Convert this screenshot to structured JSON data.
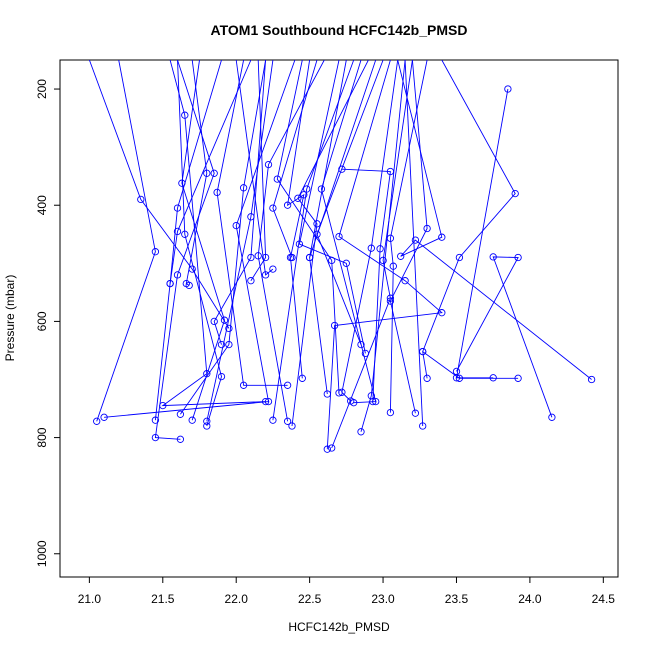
{
  "chart_data": {
    "type": "scatter",
    "title": "ATOM1 Southbound HCFC142b_PMSD",
    "xlabel": "HCFC142b_PMSD",
    "ylabel": "Pressure (mbar)",
    "xlim": [
      20.8,
      24.6
    ],
    "ylim": [
      1040,
      150
    ],
    "y_reversed": true,
    "xticks": [
      21.0,
      21.5,
      22.0,
      22.5,
      23.0,
      23.5,
      24.0,
      24.5
    ],
    "xtick_labels": [
      "21.0",
      "21.5",
      "22.0",
      "22.5",
      "23.0",
      "23.5",
      "24.0",
      "24.5"
    ],
    "yticks": [
      200,
      400,
      600,
      800,
      1000
    ],
    "ytick_labels": [
      "200",
      "400",
      "600",
      "800",
      "1000"
    ],
    "grid": false,
    "series_color": "#0000ff",
    "series": [
      {
        "points": [
          [
            21.0,
            150
          ],
          [
            21.35,
            390
          ],
          [
            21.7,
            510
          ],
          [
            21.95,
            612
          ]
        ]
      },
      {
        "points": [
          [
            21.2,
            150
          ],
          [
            21.45,
            480
          ],
          [
            21.05,
            772
          ]
        ]
      },
      {
        "points": [
          [
            21.9,
            150
          ],
          [
            21.6,
            405
          ],
          [
            21.55,
            535
          ],
          [
            21.45,
            770
          ]
        ]
      },
      {
        "points": [
          [
            21.55,
            150
          ],
          [
            21.65,
            245
          ],
          [
            21.8,
            690
          ],
          [
            21.5,
            745
          ],
          [
            22.2,
            738
          ]
        ]
      },
      {
        "points": [
          [
            21.6,
            150
          ],
          [
            21.85,
            345
          ],
          [
            21.6,
            520
          ],
          [
            21.45,
            800
          ],
          [
            21.62,
            803
          ]
        ]
      },
      {
        "points": [
          [
            21.75,
            150
          ],
          [
            21.63,
            362
          ],
          [
            21.92,
            598
          ],
          [
            21.7,
            770
          ]
        ]
      },
      {
        "points": [
          [
            22.05,
            150
          ],
          [
            21.87,
            378
          ],
          [
            22.05,
            710
          ],
          [
            22.35,
            710
          ]
        ]
      },
      {
        "points": [
          [
            21.6,
            150
          ],
          [
            21.65,
            450
          ],
          [
            21.9,
            695
          ],
          [
            21.8,
            780
          ]
        ]
      },
      {
        "points": [
          [
            22.2,
            150
          ],
          [
            22.05,
            370
          ],
          [
            21.95,
            640
          ],
          [
            21.62,
            760
          ]
        ]
      },
      {
        "points": [
          [
            22.45,
            150
          ],
          [
            22.28,
            355
          ],
          [
            22.65,
            495
          ],
          [
            22.7,
            723
          ]
        ]
      },
      {
        "points": [
          [
            22.25,
            150
          ],
          [
            22.1,
            420
          ],
          [
            21.8,
            772
          ]
        ]
      },
      {
        "points": [
          [
            22.4,
            150
          ],
          [
            22.0,
            435
          ],
          [
            22.22,
            738
          ],
          [
            21.1,
            765
          ]
        ]
      },
      {
        "points": [
          [
            22.6,
            150
          ],
          [
            22.22,
            330
          ],
          [
            22.15,
            487
          ],
          [
            22.35,
            772
          ]
        ]
      },
      {
        "points": [
          [
            22.5,
            150
          ],
          [
            22.35,
            400
          ],
          [
            22.46,
            382
          ],
          [
            22.37,
            490
          ],
          [
            22.45,
            698
          ]
        ]
      },
      {
        "points": [
          [
            22.8,
            150
          ],
          [
            22.48,
            372
          ],
          [
            22.25,
            770
          ]
        ]
      },
      {
        "points": [
          [
            22.55,
            150
          ],
          [
            22.25,
            405
          ],
          [
            22.38,
            490
          ]
        ]
      },
      {
        "points": [
          [
            22.9,
            150
          ],
          [
            22.42,
            388
          ],
          [
            22.55,
            432
          ],
          [
            22.38,
            780
          ]
        ]
      },
      {
        "points": [
          [
            22.95,
            150
          ],
          [
            22.5,
            490
          ],
          [
            22.62,
            725
          ]
        ]
      },
      {
        "points": [
          [
            22.7,
            150
          ],
          [
            22.43,
            467
          ],
          [
            22.75,
            500
          ],
          [
            22.88,
            655
          ]
        ]
      },
      {
        "points": [
          [
            23.0,
            150
          ],
          [
            22.55,
            450
          ],
          [
            22.85,
            640
          ]
        ]
      },
      {
        "points": [
          [
            22.85,
            150
          ],
          [
            22.58,
            372
          ],
          [
            22.95,
            738
          ],
          [
            22.8,
            740
          ]
        ]
      },
      {
        "points": [
          [
            23.1,
            150
          ],
          [
            22.92,
            474
          ],
          [
            22.72,
            722
          ],
          [
            22.78,
            737
          ]
        ]
      },
      {
        "points": [
          [
            23.2,
            150
          ],
          [
            23.0,
            495
          ],
          [
            23.05,
            560
          ],
          [
            22.65,
            818
          ]
        ]
      },
      {
        "points": [
          [
            22.75,
            150
          ],
          [
            22.5,
            490
          ]
        ]
      },
      {
        "points": [
          [
            23.3,
            150
          ],
          [
            23.05,
            457
          ],
          [
            23.07,
            505
          ],
          [
            23.05,
            757
          ]
        ]
      },
      {
        "points": [
          [
            23.15,
            150
          ],
          [
            22.92,
            728
          ],
          [
            22.85,
            790
          ]
        ]
      },
      {
        "points": [
          [
            23.05,
            150
          ],
          [
            22.7,
            454
          ],
          [
            23.15,
            530
          ],
          [
            23.4,
            585
          ],
          [
            22.67,
            607
          ],
          [
            22.62,
            820
          ]
        ]
      },
      {
        "points": [
          [
            22.72,
            338
          ],
          [
            23.05,
            342
          ],
          [
            22.98,
            475
          ],
          [
            22.93,
            738
          ]
        ]
      },
      {
        "points": [
          [
            22.0,
            150
          ],
          [
            22.2,
            520
          ],
          [
            22.25,
            510
          ]
        ]
      },
      {
        "points": [
          [
            22.15,
            150
          ],
          [
            22.2,
            490
          ],
          [
            22.1,
            530
          ]
        ]
      },
      {
        "points": [
          [
            23.2,
            150
          ],
          [
            23.3,
            440
          ],
          [
            23.05,
            565
          ],
          [
            23.22,
            758
          ]
        ]
      },
      {
        "points": [
          [
            23.4,
            150
          ],
          [
            23.9,
            380
          ],
          [
            23.52,
            490
          ],
          [
            23.27,
            652
          ],
          [
            23.52,
            698
          ],
          [
            23.92,
            698
          ]
        ]
      },
      {
        "points": [
          [
            23.1,
            150
          ],
          [
            23.4,
            455
          ],
          [
            23.12,
            488
          ],
          [
            23.22,
            460
          ],
          [
            24.42,
            700
          ]
        ]
      },
      {
        "points": [
          [
            23.27,
            652
          ],
          [
            23.3,
            698
          ]
        ]
      },
      {
        "points": [
          [
            23.5,
            686
          ],
          [
            23.92,
            490
          ],
          [
            23.75,
            489
          ],
          [
            24.15,
            765
          ]
        ]
      },
      {
        "points": [
          [
            23.85,
            200
          ],
          [
            23.5,
            697
          ],
          [
            23.75,
            697
          ]
        ]
      },
      {
        "points": [
          [
            22.2,
            150
          ],
          [
            22.1,
            490
          ],
          [
            21.85,
            600
          ],
          [
            21.9,
            640
          ]
        ]
      },
      {
        "points": [
          [
            21.7,
            150
          ],
          [
            21.8,
            345
          ],
          [
            21.66,
            535
          ],
          [
            21.68,
            538
          ]
        ]
      },
      {
        "points": [
          [
            22.1,
            150
          ],
          [
            21.6,
            445
          ],
          [
            21.55,
            535
          ]
        ]
      },
      {
        "points": [
          [
            23.15,
            150
          ],
          [
            23.27,
            780
          ]
        ]
      }
    ]
  }
}
